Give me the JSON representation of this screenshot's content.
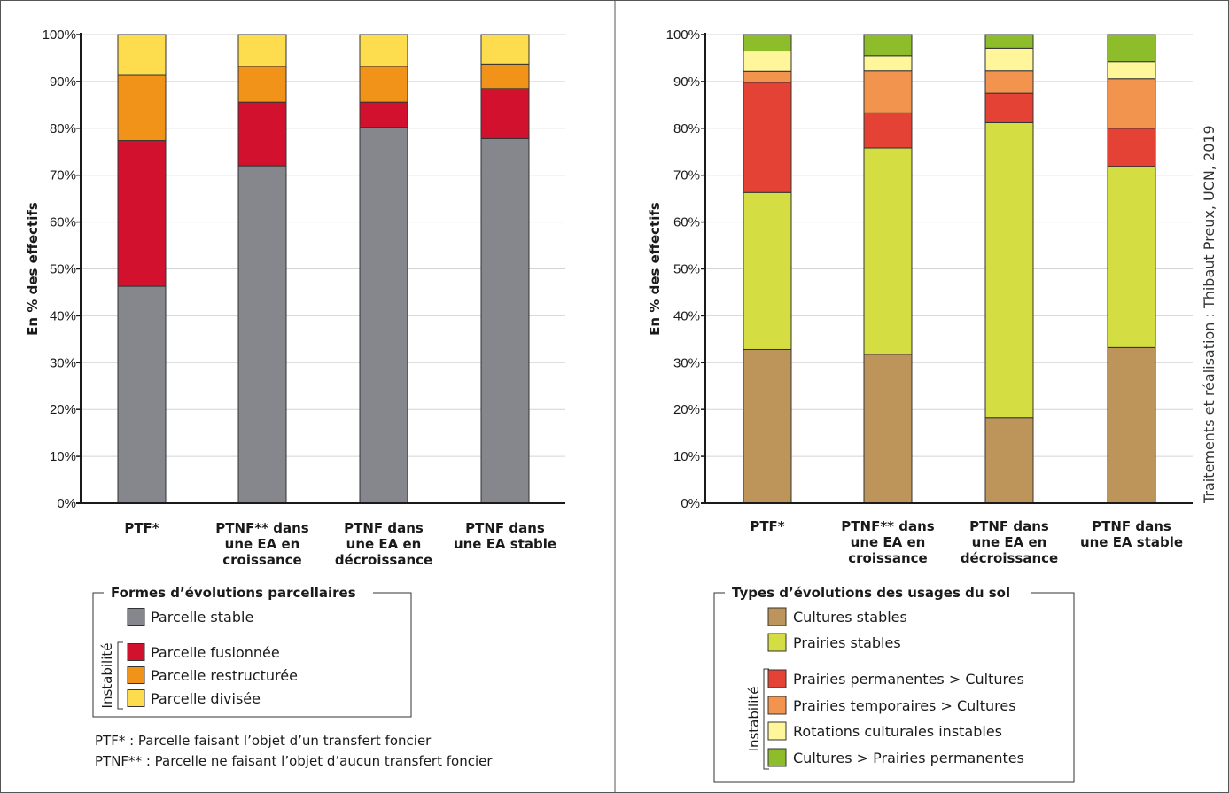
{
  "colors": {
    "gridline": "#d4d4d4",
    "axis": "#1a1a1a",
    "bar_outline": "#333333"
  },
  "credit": "Traitements et réalisation : Thibaut Preux, UCN, 2019",
  "chart_data": [
    {
      "type": "bar",
      "stacked": true,
      "title": "",
      "xlabel": "",
      "ylabel": "En % des effectifs",
      "ylim": [
        0,
        100
      ],
      "yticks": [
        "0%",
        "10%",
        "20%",
        "30%",
        "40%",
        "50%",
        "60%",
        "70%",
        "80%",
        "90%",
        "100%"
      ],
      "grid": true,
      "categories": [
        [
          "PTF*"
        ],
        [
          "PTNF** dans",
          "une EA en",
          "croissance"
        ],
        [
          "PTNF dans",
          "une EA en",
          "décroissance"
        ],
        [
          "PTNF dans",
          "une EA stable"
        ]
      ],
      "series": [
        {
          "name": "Parcelle stable",
          "color": "#86868d",
          "values": [
            46.3,
            72.0,
            80.2,
            77.8
          ]
        },
        {
          "name": "Parcelle fusionnée",
          "color": "#d2112e",
          "values": [
            31.1,
            13.6,
            5.4,
            10.7
          ]
        },
        {
          "name": "Parcelle restructurée",
          "color": "#f29319",
          "values": [
            13.9,
            7.6,
            7.6,
            5.2
          ]
        },
        {
          "name": "Parcelle divisée",
          "color": "#fddd4e",
          "values": [
            8.7,
            6.8,
            6.8,
            6.3
          ]
        }
      ],
      "legend": {
        "title": "Formes d’évolutions parcellaires",
        "stable_items": [
          {
            "label": "Parcelle stable",
            "color": "#86868d"
          }
        ],
        "instability_label": "Instabilité",
        "instability_items": [
          {
            "label": "Parcelle fusionnée",
            "color": "#d2112e"
          },
          {
            "label": "Parcelle restructurée",
            "color": "#f29319"
          },
          {
            "label": "Parcelle divisée",
            "color": "#fddd4e"
          }
        ]
      },
      "footnotes": [
        "PTF* : Parcelle faisant l’objet d’un transfert foncier",
        "PTNF** : Parcelle ne faisant l’objet d’aucun transfert foncier"
      ]
    },
    {
      "type": "bar",
      "stacked": true,
      "title": "",
      "xlabel": "",
      "ylabel": "En % des effectifs",
      "ylim": [
        0,
        100
      ],
      "yticks": [
        "0%",
        "10%",
        "20%",
        "30%",
        "40%",
        "50%",
        "60%",
        "70%",
        "80%",
        "90%",
        "100%"
      ],
      "grid": true,
      "categories": [
        [
          "PTF*"
        ],
        [
          "PTNF** dans",
          "une EA en",
          "croissance"
        ],
        [
          "PTNF dans",
          "une EA en",
          "décroissance"
        ],
        [
          "PTNF dans",
          "une EA stable"
        ]
      ],
      "series": [
        {
          "name": "Cultures stables",
          "color": "#bd955a",
          "values": [
            32.8,
            31.8,
            18.2,
            33.2
          ]
        },
        {
          "name": "Prairies stables",
          "color": "#d4dd42",
          "values": [
            33.5,
            44.0,
            63.0,
            38.7
          ]
        },
        {
          "name": "Prairies permanentes > Cultures",
          "color": "#e44234",
          "values": [
            23.5,
            7.5,
            6.3,
            8.1
          ]
        },
        {
          "name": "Prairies temporaires > Cultures",
          "color": "#f3944e",
          "values": [
            2.4,
            9.0,
            4.8,
            10.6
          ]
        },
        {
          "name": "Rotations culturales instables",
          "color": "#fff59b",
          "values": [
            4.3,
            3.2,
            4.8,
            3.6
          ]
        },
        {
          "name": "Cultures > Prairies permanentes",
          "color": "#8dbd2b",
          "values": [
            3.5,
            4.5,
            2.9,
            5.8
          ]
        }
      ],
      "legend": {
        "title": "Types d’évolutions des usages du sol",
        "stable_items": [
          {
            "label": "Cultures stables",
            "color": "#bd955a"
          },
          {
            "label": "Prairies stables",
            "color": "#d4dd42"
          }
        ],
        "instability_label": "Instabilité",
        "instability_items": [
          {
            "label": "Prairies permanentes > Cultures",
            "color": "#e44234"
          },
          {
            "label": "Prairies temporaires > Cultures",
            "color": "#f3944e"
          },
          {
            "label": "Rotations culturales instables",
            "color": "#fff59b"
          },
          {
            "label": "Cultures > Prairies permanentes",
            "color": "#8dbd2b"
          }
        ]
      },
      "footnotes": []
    }
  ]
}
